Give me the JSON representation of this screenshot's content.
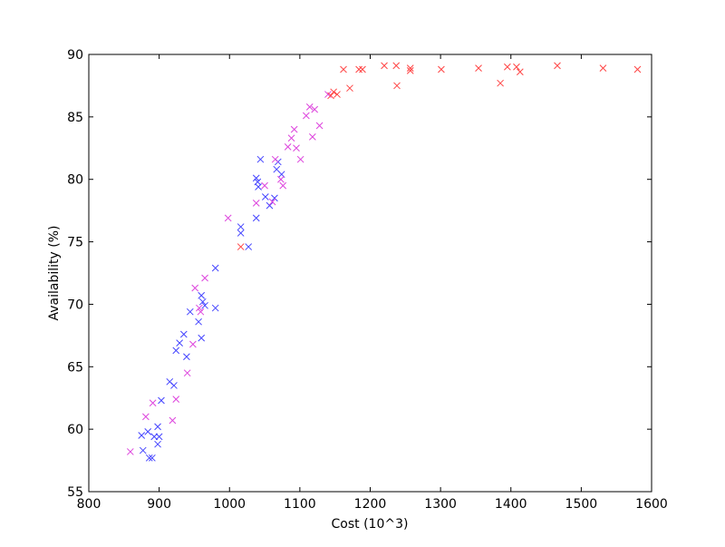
{
  "chart_data": {
    "type": "scatter",
    "xlabel": "Cost (10^3)",
    "ylabel": "Availability (%)",
    "xlim": [
      800,
      1600
    ],
    "xticks": [
      800,
      900,
      1000,
      1100,
      1200,
      1300,
      1400,
      1500,
      1600
    ],
    "ylim": [
      55,
      90
    ],
    "yticks": [
      55,
      60,
      65,
      70,
      75,
      80,
      85,
      90
    ],
    "series": [
      {
        "color": "#4444ff",
        "x": [
          875,
          877,
          884,
          886,
          890,
          893,
          898,
          900,
          898,
          903,
          915,
          921,
          924,
          929,
          935,
          939,
          944,
          956,
          960,
          962,
          960,
          965,
          980,
          980,
          1016,
          1016,
          1027,
          1038,
          1038,
          1041,
          1044,
          1051,
          1057,
          1067,
          1069,
          1074,
          1064,
          1040
        ],
        "values": [
          59.5,
          58.3,
          59.8,
          57.7,
          57.7,
          59.4,
          58.8,
          59.4,
          60.2,
          62.3,
          63.8,
          63.5,
          66.3,
          66.9,
          67.6,
          65.8,
          69.4,
          68.6,
          70.7,
          70.2,
          67.3,
          69.9,
          72.9,
          69.7,
          76.2,
          75.7,
          74.6,
          76.9,
          80.1,
          79.4,
          81.6,
          78.6,
          77.9,
          80.8,
          81.4,
          80.4,
          78.5,
          79.8
        ]
      },
      {
        "color": "#dd44dd",
        "x": [
          859,
          881,
          891,
          919,
          924,
          940,
          948,
          951,
          965,
          957,
          959,
          998,
          1038,
          1050,
          1061,
          1065,
          1073,
          1076,
          1083,
          1088,
          1092,
          1095,
          1101,
          1109,
          1114,
          1118,
          1121,
          1128,
          1140
        ],
        "values": [
          58.2,
          61.0,
          62.1,
          60.7,
          62.4,
          64.5,
          66.8,
          71.3,
          72.1,
          69.7,
          69.4,
          76.9,
          78.1,
          79.5,
          78.2,
          81.6,
          80.0,
          79.5,
          82.6,
          83.3,
          84.0,
          82.5,
          81.6,
          85.1,
          85.8,
          83.4,
          85.6,
          84.3,
          86.8
        ]
      },
      {
        "color": "#ff4444",
        "x": [
          1016,
          1162,
          1184,
          1189,
          1171,
          1144,
          1148,
          1153,
          1220,
          1237,
          1238,
          1257,
          1257,
          1301,
          1354,
          1395,
          1408,
          1385,
          1413,
          1466,
          1531,
          1580
        ],
        "values": [
          74.6,
          88.8,
          88.8,
          88.8,
          87.3,
          86.7,
          87.0,
          86.8,
          89.1,
          89.1,
          87.5,
          88.7,
          88.9,
          88.8,
          88.9,
          89.0,
          89.0,
          87.7,
          88.6,
          89.1,
          88.9,
          88.8
        ]
      }
    ]
  }
}
